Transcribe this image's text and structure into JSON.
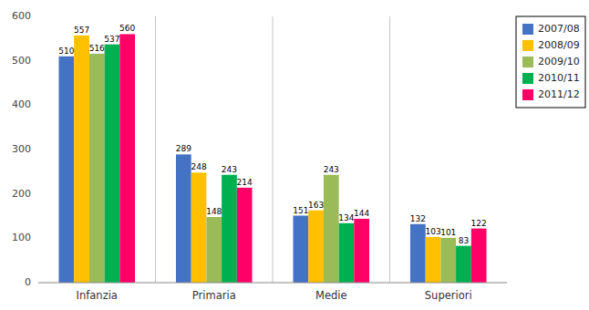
{
  "chart_data": {
    "type": "bar",
    "categories": [
      "Infanzia",
      "Primaria",
      "Medie",
      "Superiori"
    ],
    "series": [
      {
        "name": "2007/08",
        "color": "#4472C4",
        "values": [
          510,
          289,
          151,
          132
        ]
      },
      {
        "name": "2008/09",
        "color": "#FFC000",
        "values": [
          557,
          248,
          163,
          103
        ]
      },
      {
        "name": "2009/10",
        "color": "#9BBB59",
        "values": [
          516,
          148,
          243,
          101
        ]
      },
      {
        "name": "2010/11",
        "color": "#00B050",
        "values": [
          537,
          243,
          134,
          83
        ]
      },
      {
        "name": "2011/12",
        "color": "#FF0066",
        "values": [
          560,
          214,
          144,
          122
        ]
      }
    ],
    "ylim": [
      0,
      600
    ],
    "yticks": [
      0,
      100,
      200,
      300,
      400,
      500,
      600
    ],
    "data_labels": true,
    "legend": "upper right",
    "grid": false
  }
}
